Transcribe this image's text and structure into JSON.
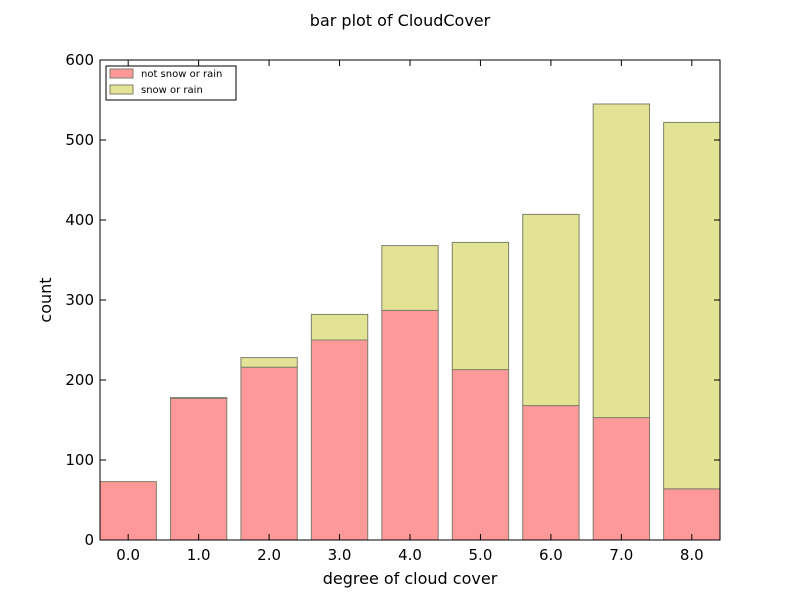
{
  "chart_data": {
    "type": "bar",
    "stacked": true,
    "title": "bar plot of  CloudCover",
    "xlabel": "degree of cloud cover",
    "ylabel": "count",
    "categories": [
      "0.0",
      "1.0",
      "2.0",
      "3.0",
      "4.0",
      "5.0",
      "6.0",
      "7.0",
      "8.0"
    ],
    "ylim": [
      0,
      600
    ],
    "yticks": [
      "0",
      "100",
      "200",
      "300",
      "400",
      "500",
      "600"
    ],
    "series": [
      {
        "name": "not snow or rain",
        "color": "#ff9999",
        "values": [
          73,
          177,
          216,
          250,
          287,
          213,
          168,
          153,
          64
        ]
      },
      {
        "name": "snow or rain",
        "color": "#e3e396",
        "values": [
          0,
          1,
          12,
          32,
          81,
          159,
          239,
          392,
          458
        ]
      }
    ],
    "bar_edge_color": "#7f7f6a",
    "grid": false,
    "legend_position": "top-left"
  }
}
